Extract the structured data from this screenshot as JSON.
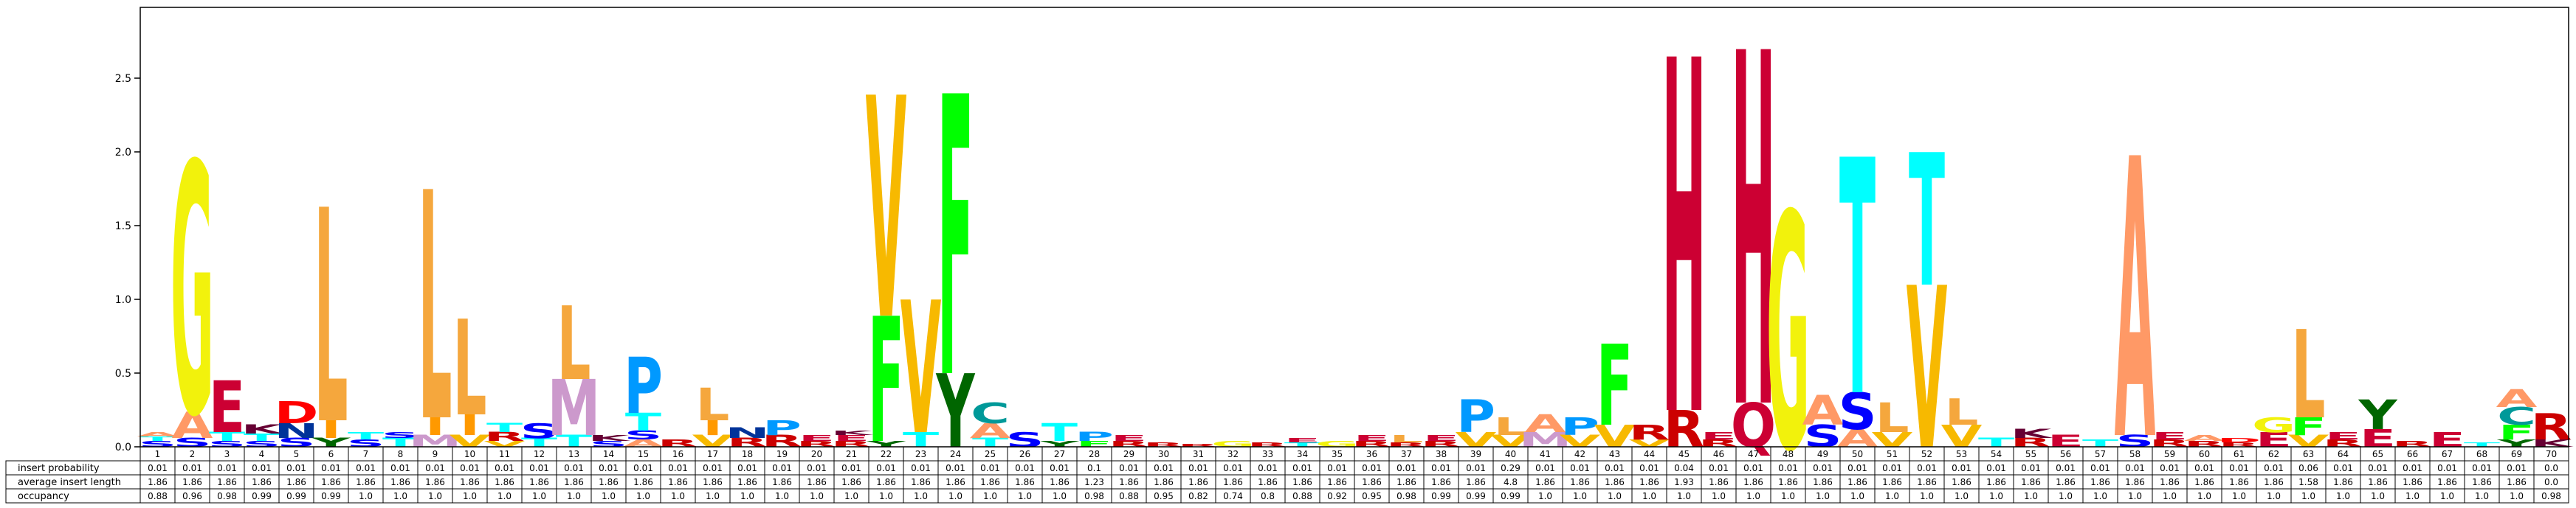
{
  "chart_data": {
    "type": "sequence-logo",
    "ylim": [
      0,
      2.98
    ],
    "yticks": [
      0.0,
      0.5,
      1.0,
      1.5,
      2.0,
      2.5
    ],
    "positions": [
      "1",
      "2",
      "3",
      "4",
      "5",
      "6",
      "7",
      "8",
      "9",
      "10",
      "11",
      "12",
      "13",
      "14",
      "15",
      "16",
      "17",
      "18",
      "19",
      "20",
      "21",
      "22",
      "23",
      "24",
      "25",
      "26",
      "27",
      "28",
      "29",
      "30",
      "31",
      "32",
      "33",
      "34",
      "35",
      "36",
      "37",
      "38",
      "39",
      "40",
      "41",
      "42",
      "43",
      "44",
      "45",
      "46",
      "47",
      "48",
      "49",
      "50",
      "51",
      "52",
      "53",
      "54",
      "55",
      "56",
      "57",
      "58",
      "59",
      "60",
      "61",
      "62",
      "63",
      "64",
      "65",
      "66",
      "67",
      "68",
      "69",
      "70"
    ],
    "table": {
      "row_labels": [
        "insert probability",
        "average insert length",
        "occupancy"
      ],
      "insert_probability": [
        "0.01",
        "0.01",
        "0.01",
        "0.01",
        "0.01",
        "0.01",
        "0.01",
        "0.01",
        "0.01",
        "0.01",
        "0.01",
        "0.01",
        "0.01",
        "0.01",
        "0.01",
        "0.01",
        "0.01",
        "0.01",
        "0.01",
        "0.01",
        "0.01",
        "0.01",
        "0.01",
        "0.01",
        "0.01",
        "0.01",
        "0.01",
        "0.1",
        "0.01",
        "0.01",
        "0.01",
        "0.01",
        "0.01",
        "0.01",
        "0.01",
        "0.01",
        "0.01",
        "0.01",
        "0.01",
        "0.29",
        "0.01",
        "0.01",
        "0.01",
        "0.01",
        "0.04",
        "0.01",
        "0.01",
        "0.01",
        "0.01",
        "0.01",
        "0.01",
        "0.01",
        "0.01",
        "0.01",
        "0.01",
        "0.01",
        "0.01",
        "0.01",
        "0.01",
        "0.01",
        "0.01",
        "0.01",
        "0.06",
        "0.01",
        "0.01",
        "0.01",
        "0.01",
        "0.01",
        "0.01",
        "0.0"
      ],
      "average_insert_length": [
        "1.86",
        "1.86",
        "1.86",
        "1.86",
        "1.86",
        "1.86",
        "1.86",
        "1.86",
        "1.86",
        "1.86",
        "1.86",
        "1.86",
        "1.86",
        "1.86",
        "1.86",
        "1.86",
        "1.86",
        "1.86",
        "1.86",
        "1.86",
        "1.86",
        "1.86",
        "1.86",
        "1.86",
        "1.86",
        "1.86",
        "1.86",
        "1.23",
        "1.86",
        "1.86",
        "1.86",
        "1.86",
        "1.86",
        "1.86",
        "1.86",
        "1.86",
        "1.86",
        "1.86",
        "1.86",
        "4.8",
        "1.86",
        "1.86",
        "1.86",
        "1.86",
        "1.93",
        "1.86",
        "1.86",
        "1.86",
        "1.86",
        "1.86",
        "1.86",
        "1.86",
        "1.86",
        "1.86",
        "1.86",
        "1.86",
        "1.86",
        "1.86",
        "1.86",
        "1.86",
        "1.86",
        "1.86",
        "1.58",
        "1.86",
        "1.86",
        "1.86",
        "1.86",
        "1.86",
        "1.86",
        "0.0"
      ],
      "occupancy": [
        "0.88",
        "0.96",
        "0.98",
        "0.99",
        "0.99",
        "0.99",
        "1.0",
        "1.0",
        "1.0",
        "1.0",
        "1.0",
        "1.0",
        "1.0",
        "1.0",
        "1.0",
        "1.0",
        "1.0",
        "1.0",
        "1.0",
        "1.0",
        "1.0",
        "1.0",
        "1.0",
        "1.0",
        "1.0",
        "1.0",
        "1.0",
        "0.98",
        "0.88",
        "0.95",
        "0.82",
        "0.74",
        "0.8",
        "0.88",
        "0.92",
        "0.95",
        "0.98",
        "0.99",
        "0.99",
        "0.99",
        "1.0",
        "1.0",
        "1.0",
        "1.0",
        "1.0",
        "1.0",
        "1.0",
        "1.0",
        "1.0",
        "1.0",
        "1.0",
        "1.0",
        "1.0",
        "1.0",
        "1.0",
        "1.0",
        "1.0",
        "1.0",
        "1.0",
        "1.0",
        "1.0",
        "1.0",
        "1.0",
        "1.0",
        "1.0",
        "1.0",
        "1.0",
        "1.0",
        "1.0",
        "0.98"
      ]
    },
    "letters": [
      {
        "pos": 1,
        "stack": [
          [
            "S",
            0.04
          ],
          [
            "T",
            0.03
          ],
          [
            "A",
            0.03
          ]
        ]
      },
      {
        "pos": 2,
        "stack": [
          [
            "S",
            0.06
          ],
          [
            "A",
            0.18
          ],
          [
            "G",
            1.7
          ]
        ]
      },
      {
        "pos": 3,
        "stack": [
          [
            "S",
            0.04
          ],
          [
            "T",
            0.06
          ],
          [
            "E",
            0.35
          ]
        ]
      },
      {
        "pos": 4,
        "stack": [
          [
            "S",
            0.04
          ],
          [
            "T",
            0.05
          ],
          [
            "K",
            0.06
          ]
        ]
      },
      {
        "pos": 5,
        "stack": [
          [
            "S",
            0.06
          ],
          [
            "N",
            0.1
          ],
          [
            "D",
            0.15
          ]
        ]
      },
      {
        "pos": 6,
        "stack": [
          [
            "Y",
            0.06
          ],
          [
            "I",
            0.12
          ],
          [
            "L",
            1.45
          ]
        ]
      },
      {
        "pos": 7,
        "stack": [
          [
            "S",
            0.05
          ],
          [
            "T",
            0.05
          ]
        ]
      },
      {
        "pos": 8,
        "stack": [
          [
            "T",
            0.06
          ],
          [
            "S",
            0.04
          ]
        ]
      },
      {
        "pos": 9,
        "stack": [
          [
            "M",
            0.08
          ],
          [
            "I",
            0.12
          ],
          [
            "L",
            1.55
          ]
        ]
      },
      {
        "pos": 10,
        "stack": [
          [
            "V",
            0.08
          ],
          [
            "I",
            0.14
          ],
          [
            "L",
            0.65
          ]
        ]
      },
      {
        "pos": 11,
        "stack": [
          [
            "V",
            0.04
          ],
          [
            "R",
            0.06
          ],
          [
            "T",
            0.06
          ]
        ]
      },
      {
        "pos": 12,
        "stack": [
          [
            "T",
            0.06
          ],
          [
            "S",
            0.1
          ]
        ]
      },
      {
        "pos": 13,
        "stack": [
          [
            "T",
            0.08
          ],
          [
            "M",
            0.38
          ],
          [
            "L",
            0.5
          ]
        ]
      },
      {
        "pos": 14,
        "stack": [
          [
            "S",
            0.04
          ],
          [
            "K",
            0.04
          ]
        ]
      },
      {
        "pos": 15,
        "stack": [
          [
            "A",
            0.05
          ],
          [
            "S",
            0.06
          ],
          [
            "T",
            0.12
          ],
          [
            "P",
            0.38
          ]
        ]
      },
      {
        "pos": 16,
        "stack": [
          [
            "R",
            0.05
          ]
        ]
      },
      {
        "pos": 17,
        "stack": [
          [
            "V",
            0.08
          ],
          [
            "I",
            0.1
          ],
          [
            "L",
            0.22
          ]
        ]
      },
      {
        "pos": 18,
        "stack": [
          [
            "R",
            0.06
          ],
          [
            "N",
            0.07
          ]
        ]
      },
      {
        "pos": 19,
        "stack": [
          [
            "R",
            0.08
          ],
          [
            "P",
            0.1
          ]
        ]
      },
      {
        "pos": 20,
        "stack": [
          [
            "R",
            0.04
          ],
          [
            "E",
            0.04
          ]
        ]
      },
      {
        "pos": 21,
        "stack": [
          [
            "R",
            0.04
          ],
          [
            "E",
            0.04
          ],
          [
            "K",
            0.03
          ]
        ]
      },
      {
        "pos": 22,
        "stack": [
          [
            "Y",
            0.04
          ],
          [
            "F",
            0.85
          ],
          [
            "V",
            1.5
          ]
        ]
      },
      {
        "pos": 23,
        "stack": [
          [
            "T",
            0.1
          ],
          [
            "V",
            0.9
          ]
        ]
      },
      {
        "pos": 24,
        "stack": [
          [
            "Y",
            0.5
          ],
          [
            "F",
            1.9
          ]
        ]
      },
      {
        "pos": 25,
        "stack": [
          [
            "T",
            0.06
          ],
          [
            "A",
            0.1
          ],
          [
            "C",
            0.14
          ]
        ]
      },
      {
        "pos": 26,
        "stack": [
          [
            "S",
            0.1
          ]
        ]
      },
      {
        "pos": 27,
        "stack": [
          [
            "Y",
            0.04
          ],
          [
            "T",
            0.12
          ]
        ]
      },
      {
        "pos": 28,
        "stack": [
          [
            "F",
            0.04
          ],
          [
            "P",
            0.06
          ]
        ]
      },
      {
        "pos": 29,
        "stack": [
          [
            "R",
            0.04
          ],
          [
            "E",
            0.04
          ]
        ]
      },
      {
        "pos": 30,
        "stack": [
          [
            "R",
            0.03
          ]
        ]
      },
      {
        "pos": 31,
        "stack": [
          [
            "R",
            0.02
          ]
        ]
      },
      {
        "pos": 32,
        "stack": [
          [
            "G",
            0.04
          ]
        ]
      },
      {
        "pos": 33,
        "stack": [
          [
            "R",
            0.03
          ]
        ]
      },
      {
        "pos": 34,
        "stack": [
          [
            "T",
            0.03
          ],
          [
            "E",
            0.03
          ]
        ]
      },
      {
        "pos": 35,
        "stack": [
          [
            "G",
            0.04
          ]
        ]
      },
      {
        "pos": 36,
        "stack": [
          [
            "R",
            0.04
          ],
          [
            "E",
            0.04
          ]
        ]
      },
      {
        "pos": 37,
        "stack": [
          [
            "R",
            0.03
          ],
          [
            "L",
            0.05
          ]
        ]
      },
      {
        "pos": 38,
        "stack": [
          [
            "R",
            0.04
          ],
          [
            "E",
            0.04
          ]
        ]
      },
      {
        "pos": 39,
        "stack": [
          [
            "V",
            0.1
          ],
          [
            "P",
            0.22
          ]
        ]
      },
      {
        "pos": 40,
        "stack": [
          [
            "V",
            0.08
          ],
          [
            "L",
            0.12
          ]
        ]
      },
      {
        "pos": 41,
        "stack": [
          [
            "M",
            0.1
          ],
          [
            "A",
            0.12
          ]
        ]
      },
      {
        "pos": 42,
        "stack": [
          [
            "V",
            0.08
          ],
          [
            "P",
            0.12
          ]
        ]
      },
      {
        "pos": 43,
        "stack": [
          [
            "V",
            0.15
          ],
          [
            "F",
            0.55
          ]
        ]
      },
      {
        "pos": 44,
        "stack": [
          [
            "V",
            0.05
          ],
          [
            "R",
            0.1
          ]
        ]
      },
      {
        "pos": 45,
        "stack": [
          [
            "R",
            0.25
          ],
          [
            "H",
            2.4
          ]
        ]
      },
      {
        "pos": 46,
        "stack": [
          [
            "R",
            0.05
          ],
          [
            "E",
            0.05
          ]
        ]
      },
      {
        "pos": 47,
        "stack": [
          [
            "Q",
            0.3
          ],
          [
            "H",
            2.4
          ]
        ]
      },
      {
        "pos": 48,
        "stack": [
          [
            "G",
            1.6
          ]
        ]
      },
      {
        "pos": 49,
        "stack": [
          [
            "S",
            0.15
          ],
          [
            "A",
            0.2
          ]
        ]
      },
      {
        "pos": 50,
        "stack": [
          [
            "A",
            0.12
          ],
          [
            "S",
            0.25
          ],
          [
            "T",
            1.6
          ]
        ]
      },
      {
        "pos": 51,
        "stack": [
          [
            "V",
            0.1
          ],
          [
            "L",
            0.2
          ]
        ]
      },
      {
        "pos": 52,
        "stack": [
          [
            "V",
            1.1
          ],
          [
            "T",
            0.9
          ]
        ]
      },
      {
        "pos": 53,
        "stack": [
          [
            "V",
            0.15
          ],
          [
            "L",
            0.18
          ]
        ]
      },
      {
        "pos": 54,
        "stack": [
          [
            "T",
            0.06
          ]
        ]
      },
      {
        "pos": 55,
        "stack": [
          [
            "R",
            0.06
          ],
          [
            "K",
            0.06
          ]
        ]
      },
      {
        "pos": 56,
        "stack": [
          [
            "E",
            0.08
          ]
        ]
      },
      {
        "pos": 57,
        "stack": [
          [
            "T",
            0.05
          ]
        ]
      },
      {
        "pos": 58,
        "stack": [
          [
            "S",
            0.08
          ],
          [
            "A",
            1.9
          ]
        ]
      },
      {
        "pos": 59,
        "stack": [
          [
            "R",
            0.05
          ],
          [
            "E",
            0.05
          ]
        ]
      },
      {
        "pos": 60,
        "stack": [
          [
            "R",
            0.04
          ],
          [
            "A",
            0.04
          ]
        ]
      },
      {
        "pos": 61,
        "stack": [
          [
            "R",
            0.03
          ],
          [
            "D",
            0.03
          ]
        ]
      },
      {
        "pos": 62,
        "stack": [
          [
            "E",
            0.1
          ],
          [
            "G",
            0.1
          ]
        ]
      },
      {
        "pos": 63,
        "stack": [
          [
            "V",
            0.08
          ],
          [
            "F",
            0.12
          ],
          [
            "L",
            0.6
          ]
        ]
      },
      {
        "pos": 64,
        "stack": [
          [
            "R",
            0.05
          ],
          [
            "E",
            0.05
          ]
        ]
      },
      {
        "pos": 65,
        "stack": [
          [
            "E",
            0.12
          ],
          [
            "Y",
            0.2
          ]
        ]
      },
      {
        "pos": 66,
        "stack": [
          [
            "R",
            0.04
          ]
        ]
      },
      {
        "pos": 67,
        "stack": [
          [
            "E",
            0.1
          ]
        ]
      },
      {
        "pos": 68,
        "stack": [
          [
            "T",
            0.03
          ]
        ]
      },
      {
        "pos": 69,
        "stack": [
          [
            "Y",
            0.05
          ],
          [
            "F",
            0.1
          ],
          [
            "C",
            0.12
          ],
          [
            "A",
            0.12
          ]
        ]
      },
      {
        "pos": 70,
        "stack": [
          [
            "K",
            0.05
          ],
          [
            "R",
            0.18
          ]
        ]
      }
    ],
    "colors": {
      "A": "#ff9966",
      "C": "#009999",
      "D": "#ff0000",
      "E": "#cc0033",
      "F": "#00ff00",
      "G": "#f2f20c",
      "H": "#cc0033",
      "I": "#ff9900",
      "K": "#660033",
      "L": "#f5a73d",
      "M": "#cc99cc",
      "N": "#003399",
      "P": "#0099ff",
      "Q": "#cc0033",
      "R": "#cc0000",
      "S": "#0000ff",
      "T": "#00ffff",
      "V": "#f7b900",
      "W": "#cc99cc",
      "Y": "#006600"
    }
  }
}
